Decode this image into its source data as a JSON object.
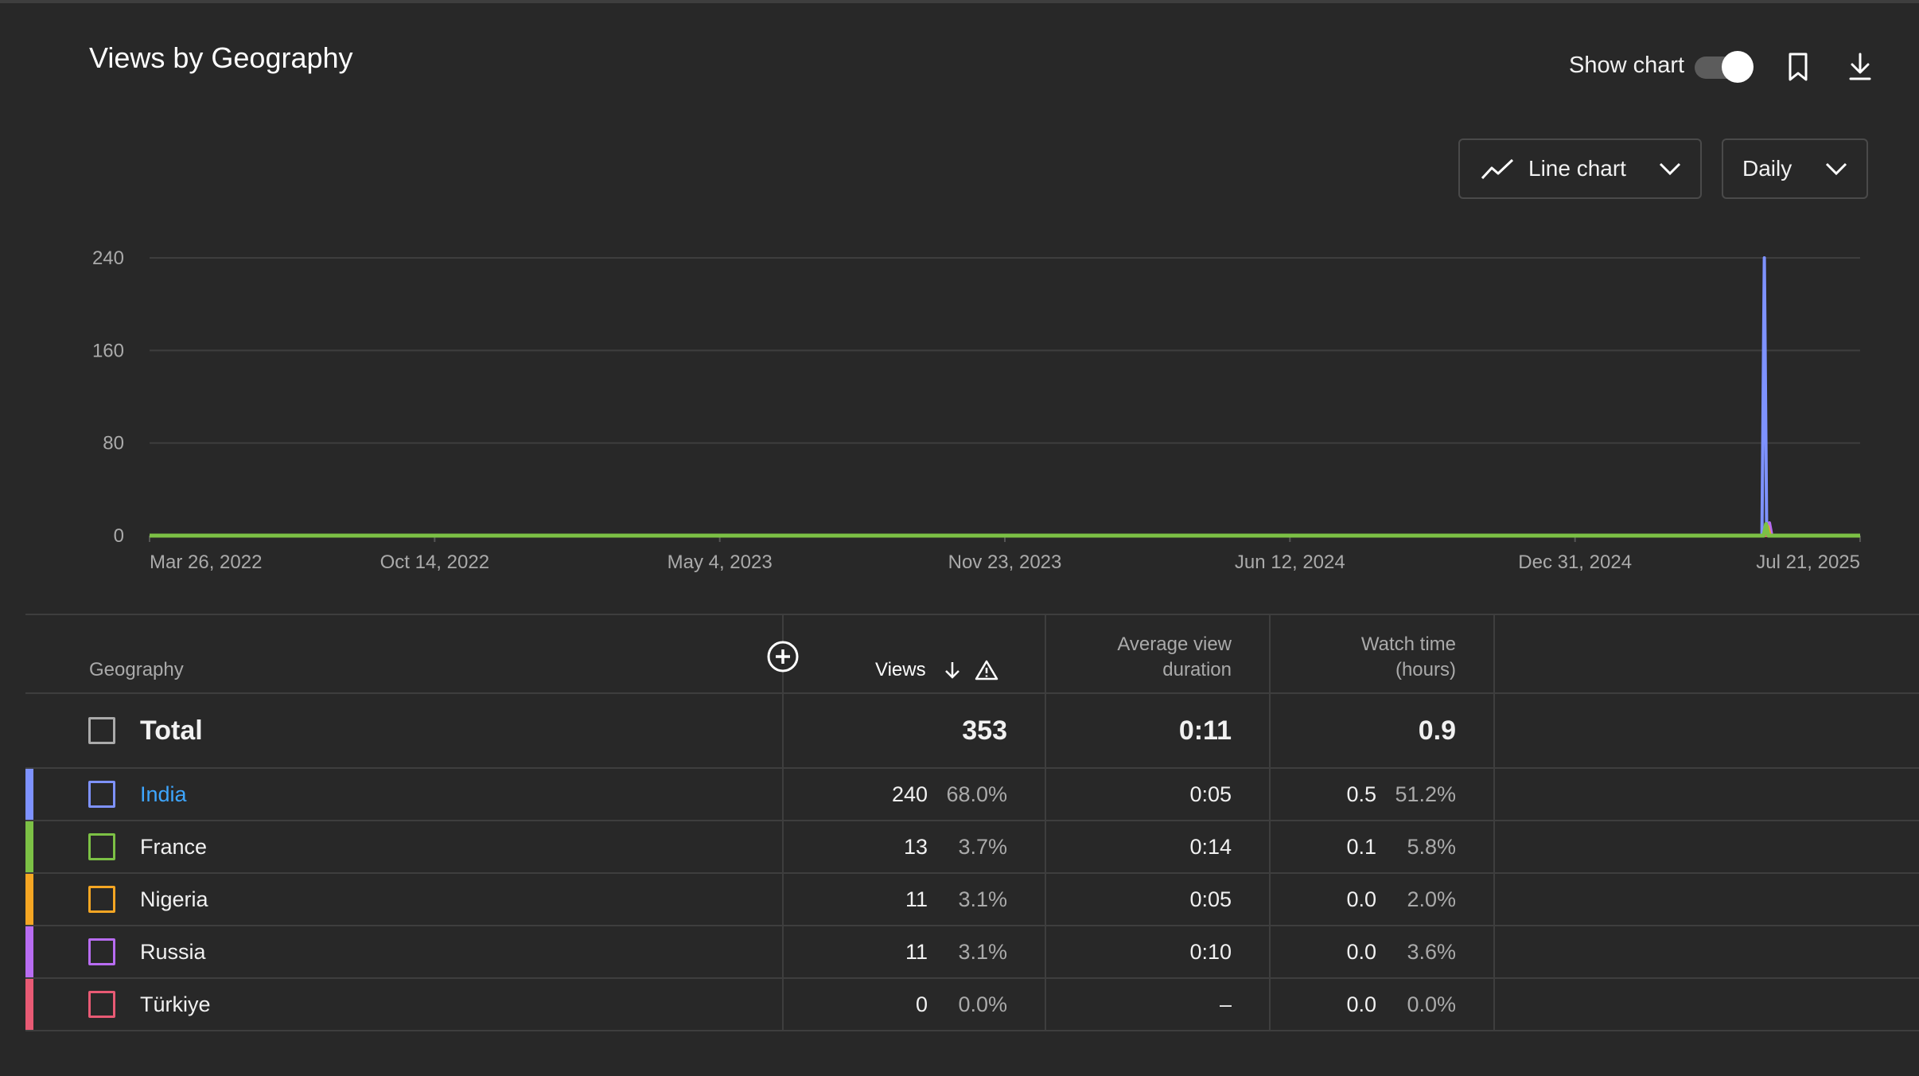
{
  "title": "Views by Geography",
  "controls": {
    "show_chart_label": "Show chart",
    "show_chart_on": true,
    "chart_type_label": "Line chart",
    "interval_label": "Daily"
  },
  "icons": {
    "line_chart": "line-chart-icon",
    "bookmark": "bookmark-icon",
    "download": "download-icon",
    "add_metric": "plus-circle-icon",
    "sort": "arrow-down-icon",
    "warning": "warning-icon"
  },
  "chart_data": {
    "type": "line",
    "x_tick_labels": [
      "Mar 26, 2022",
      "Oct 14, 2022",
      "May 4, 2023",
      "Nov 23, 2023",
      "Jun 12, 2024",
      "Dec 31, 2024",
      "Jul 21, 2025"
    ],
    "y_tick_labels": [
      "0",
      "80",
      "160",
      "240"
    ],
    "ylim": [
      0,
      240
    ],
    "grid": true,
    "series": [
      {
        "name": "India",
        "color": "#7e92ff",
        "peak_date": "Jul 21, 2025",
        "peak_offset_ratio": 0.944,
        "peak_value": 240
      },
      {
        "name": "France",
        "color": "#7cc145",
        "peak_offset_ratio": 0.945,
        "peak_value": 10
      },
      {
        "name": "Nigeria",
        "color": "#f5a623",
        "peak_offset_ratio": 0.946,
        "peak_value": 8
      },
      {
        "name": "Russia",
        "color": "#b86cf2",
        "peak_offset_ratio": 0.947,
        "peak_value": 11
      },
      {
        "name": "Türkiye",
        "color": "#e85a74",
        "peak_offset_ratio": 0.947,
        "peak_value": 0
      }
    ]
  },
  "table": {
    "headers": {
      "geography": "Geography",
      "views": "Views",
      "avd_line1": "Average view",
      "avd_line2": "duration",
      "wt_line1": "Watch time",
      "wt_line2": "(hours)"
    },
    "total": {
      "label": "Total",
      "views": "353",
      "avd": "0:11",
      "watch_time": "0.9"
    },
    "rows": [
      {
        "geo": "India",
        "color": "#7e92ff",
        "views": "240",
        "views_pct": "68.0%",
        "avd": "0:05",
        "wt": "0.5",
        "wt_pct": "51.2%",
        "link": true
      },
      {
        "geo": "France",
        "color": "#7cc145",
        "views": "13",
        "views_pct": "3.7%",
        "avd": "0:14",
        "wt": "0.1",
        "wt_pct": "5.8%",
        "link": false
      },
      {
        "geo": "Nigeria",
        "color": "#f5a623",
        "views": "11",
        "views_pct": "3.1%",
        "avd": "0:05",
        "wt": "0.0",
        "wt_pct": "2.0%",
        "link": false
      },
      {
        "geo": "Russia",
        "color": "#b86cf2",
        "views": "11",
        "views_pct": "3.1%",
        "avd": "0:10",
        "wt": "0.0",
        "wt_pct": "3.6%",
        "link": false
      },
      {
        "geo": "Türkiye",
        "color": "#e85a74",
        "views": "0",
        "views_pct": "0.0%",
        "avd": "–",
        "wt": "0.0",
        "wt_pct": "0.0%",
        "link": false
      }
    ]
  }
}
